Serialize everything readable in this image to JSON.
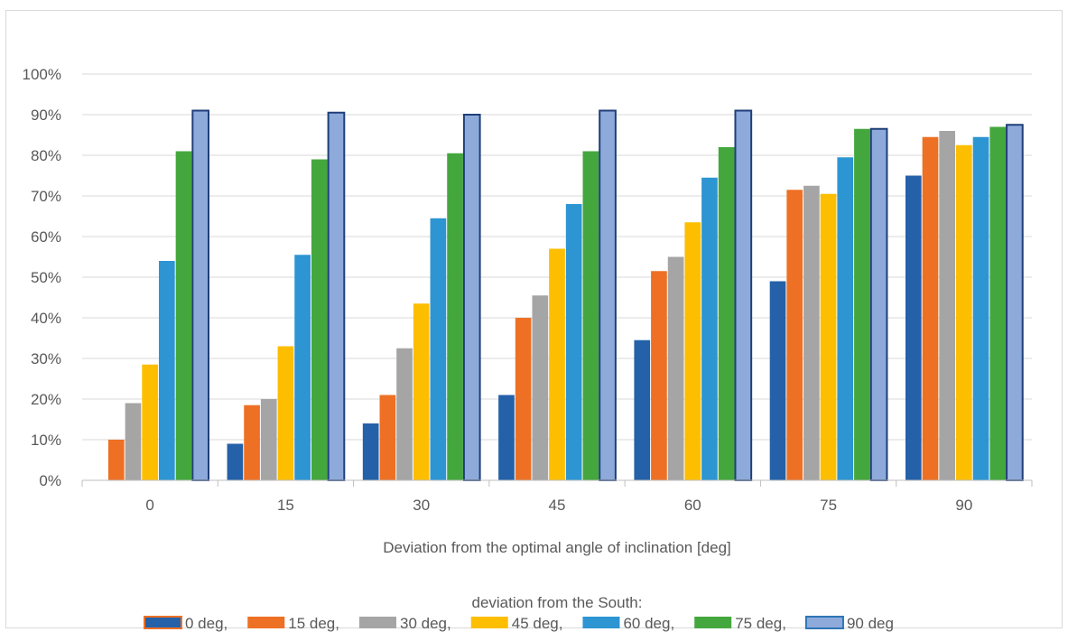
{
  "chart_data": {
    "type": "bar",
    "categories": [
      "0",
      "15",
      "30",
      "45",
      "60",
      "75",
      "90"
    ],
    "xlabel": "Deviation from the optimal angle of inclination [deg]",
    "ylabel": "",
    "ylim": [
      0,
      100
    ],
    "yticks": [
      "0%",
      "10%",
      "20%",
      "30%",
      "40%",
      "50%",
      "60%",
      "70%",
      "80%",
      "90%",
      "100%"
    ],
    "grid": true,
    "legend_title": "deviation from the South:",
    "legend_position": "bottom",
    "series": [
      {
        "name": "0 deg,",
        "color": "#2461a8",
        "values": [
          0,
          9,
          14,
          21,
          34.5,
          49,
          75
        ]
      },
      {
        "name": "15 deg,",
        "color": "#ee7024",
        "values": [
          10,
          18.5,
          21,
          40,
          51.5,
          71.5,
          84.5
        ]
      },
      {
        "name": "30 deg,",
        "color": "#a5a5a5",
        "values": [
          19,
          20,
          32.5,
          45.5,
          55,
          72.5,
          86
        ]
      },
      {
        "name": "45 deg,",
        "color": "#fdbe00",
        "values": [
          28.5,
          33,
          43.5,
          57,
          63.5,
          70.5,
          82.5
        ]
      },
      {
        "name": "60 deg,",
        "color": "#2c95d2",
        "values": [
          54,
          55.5,
          64.5,
          68,
          74.5,
          79.5,
          84.5
        ]
      },
      {
        "name": "75 deg,",
        "color": "#44a73d",
        "values": [
          81,
          79,
          80.5,
          81,
          82,
          86.5,
          87
        ]
      },
      {
        "name": "90 deg",
        "color": "#8eaadb",
        "values": [
          91,
          90.5,
          90,
          91,
          91,
          86.5,
          87.5
        ]
      }
    ]
  }
}
